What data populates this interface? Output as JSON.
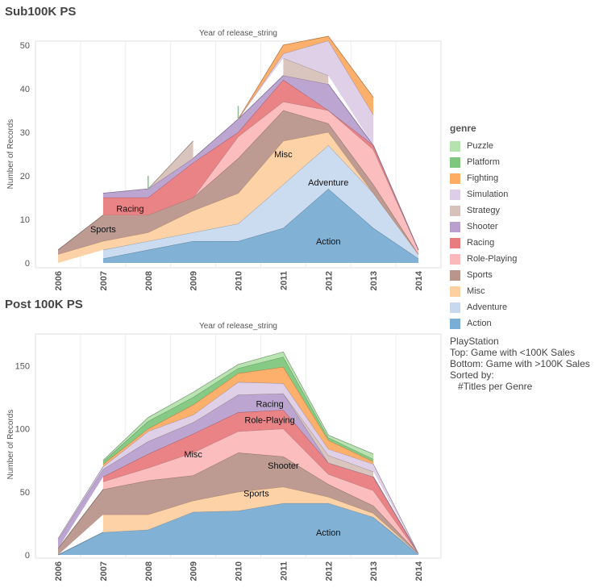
{
  "colors": {
    "Action": "#7aaed4",
    "Adventure": "#c8d9ef",
    "Misc": "#fdd0a2",
    "Sports": "#b9958c",
    "Role-Playing": "#fbb9bb",
    "Racing": "#e87c7f",
    "Shooter": "#b9a0cf",
    "Strategy": "#d7c2bb",
    "Simulation": "#ddcde6",
    "Fighting": "#fdac63",
    "Platform": "#7fc77e",
    "Puzzle": "#b5e3ae"
  },
  "legend": {
    "title": "genre",
    "items": [
      "Puzzle",
      "Platform",
      "Fighting",
      "Simulation",
      "Strategy",
      "Shooter",
      "Racing",
      "Role-Playing",
      "Sports",
      "Misc",
      "Adventure",
      "Action"
    ]
  },
  "note_lines": [
    "PlayStation",
    "Top: Game with <100K Sales",
    "Bottom: Game with >100K Sales",
    "Sorted by:",
    "   #Titles per Genre"
  ],
  "chart_data": [
    {
      "type": "area",
      "stacked": true,
      "title": "Sub100K PS",
      "header": "Year of release_string",
      "ylabel": "Number of Records",
      "xlabel": "",
      "ylim": [
        0,
        52
      ],
      "yticks": [
        0,
        10,
        20,
        30,
        40,
        50
      ],
      "categories": [
        "2006",
        "2007",
        "2008",
        "2009",
        "2010",
        "2011",
        "2012",
        "2013",
        "2014"
      ],
      "series": [
        {
          "name": "Action",
          "values": [
            null,
            1,
            3,
            5,
            5,
            8,
            17,
            8,
            1
          ]
        },
        {
          "name": "Adventure",
          "values": [
            null,
            2,
            2,
            2,
            4,
            10,
            10,
            8,
            1
          ]
        },
        {
          "name": "Misc",
          "values": [
            2,
            2,
            2,
            5,
            7,
            10,
            3,
            0,
            0
          ]
        },
        {
          "name": "Sports",
          "values": [
            1,
            6,
            4,
            3,
            8,
            7,
            2,
            2,
            0
          ]
        },
        {
          "name": "Role-Playing",
          "values": [
            null,
            0,
            0,
            0,
            5,
            2,
            3,
            8,
            1
          ]
        },
        {
          "name": "Racing",
          "values": [
            null,
            4,
            4,
            8,
            1,
            5,
            0,
            1,
            0
          ]
        },
        {
          "name": "Shooter",
          "values": [
            null,
            1,
            2,
            1,
            3,
            1,
            6,
            0,
            0
          ]
        },
        {
          "name": "Strategy",
          "values": [
            null,
            null,
            0,
            4,
            null,
            4,
            2,
            null,
            null
          ]
        },
        {
          "name": "Simulation",
          "values": [
            null,
            null,
            null,
            null,
            0,
            1,
            8,
            7,
            null
          ]
        },
        {
          "name": "Fighting",
          "values": [
            null,
            null,
            null,
            null,
            0,
            2,
            1,
            4,
            null
          ]
        },
        {
          "name": "Platform",
          "values": [
            null,
            null,
            3,
            null,
            3,
            null,
            null,
            null,
            null
          ]
        },
        {
          "name": "Puzzle",
          "values": [
            null,
            null,
            null,
            null,
            null,
            null,
            null,
            null,
            null
          ]
        }
      ],
      "labels": [
        {
          "text": "Action",
          "x": "2012",
          "y": 5
        },
        {
          "text": "Adventure",
          "x": "2012",
          "y": 18.5
        },
        {
          "text": "Misc",
          "x": "2011",
          "y": 25
        },
        {
          "text": "Sports",
          "x": "2007",
          "y": 7.8
        },
        {
          "text": "Racing",
          "x": "2007.6",
          "y": 12.5
        }
      ]
    },
    {
      "type": "area",
      "stacked": true,
      "title": "Post 100K PS",
      "header": "Year of release_string",
      "ylabel": "Number of Records",
      "xlabel": "",
      "ylim": [
        0,
        165
      ],
      "yticks": [
        0,
        50,
        100,
        150
      ],
      "categories": [
        "2006",
        "2007",
        "2008",
        "2009",
        "2010",
        "2011",
        "2012",
        "2013",
        "2014"
      ],
      "series": [
        {
          "name": "Action",
          "values": [
            0,
            18,
            20,
            34,
            35,
            41,
            41,
            30,
            0
          ]
        },
        {
          "name": "Adventure",
          "values": [
            null,
            0,
            0,
            0,
            0,
            0,
            0,
            0,
            1
          ]
        },
        {
          "name": "Misc",
          "values": [
            null,
            14,
            12,
            9,
            15,
            13,
            5,
            3,
            0
          ]
        },
        {
          "name": "Sports",
          "values": [
            5,
            20,
            27,
            20,
            31,
            24,
            10,
            6,
            0
          ]
        },
        {
          "name": "Role-Playing",
          "values": [
            null,
            6,
            10,
            18,
            17,
            22,
            8,
            12,
            0
          ]
        },
        {
          "name": "Racing",
          "values": [
            null,
            4,
            11,
            15,
            15,
            15,
            9,
            11,
            0
          ]
        },
        {
          "name": "Shooter",
          "values": [
            7,
            6,
            10,
            9,
            14,
            13,
            0,
            0,
            0
          ]
        },
        {
          "name": "Strategy",
          "values": [
            null,
            null,
            0,
            0,
            0,
            0,
            6,
            4,
            null
          ]
        },
        {
          "name": "Simulation",
          "values": [
            1,
            2,
            8,
            6,
            10,
            8,
            5,
            6,
            0
          ]
        },
        {
          "name": "Fighting",
          "values": [
            null,
            2,
            2,
            8,
            7,
            13,
            7,
            2,
            null
          ]
        },
        {
          "name": "Platform",
          "values": [
            null,
            2,
            6,
            6,
            4,
            8,
            2,
            2,
            null
          ]
        },
        {
          "name": "Puzzle",
          "values": [
            null,
            1,
            3,
            4,
            3,
            4,
            2,
            4,
            null
          ]
        }
      ],
      "labels": [
        {
          "text": "Action",
          "x": "2012",
          "y": 18
        },
        {
          "text": "Sports",
          "x": "2010.4",
          "y": 49
        },
        {
          "text": "Shooter",
          "x": "2011",
          "y": 71
        },
        {
          "text": "Misc",
          "x": "2009",
          "y": 80
        },
        {
          "text": "Role-Playing",
          "x": "2010.7",
          "y": 107
        },
        {
          "text": "Racing",
          "x": "2010.7",
          "y": 120
        }
      ]
    }
  ]
}
